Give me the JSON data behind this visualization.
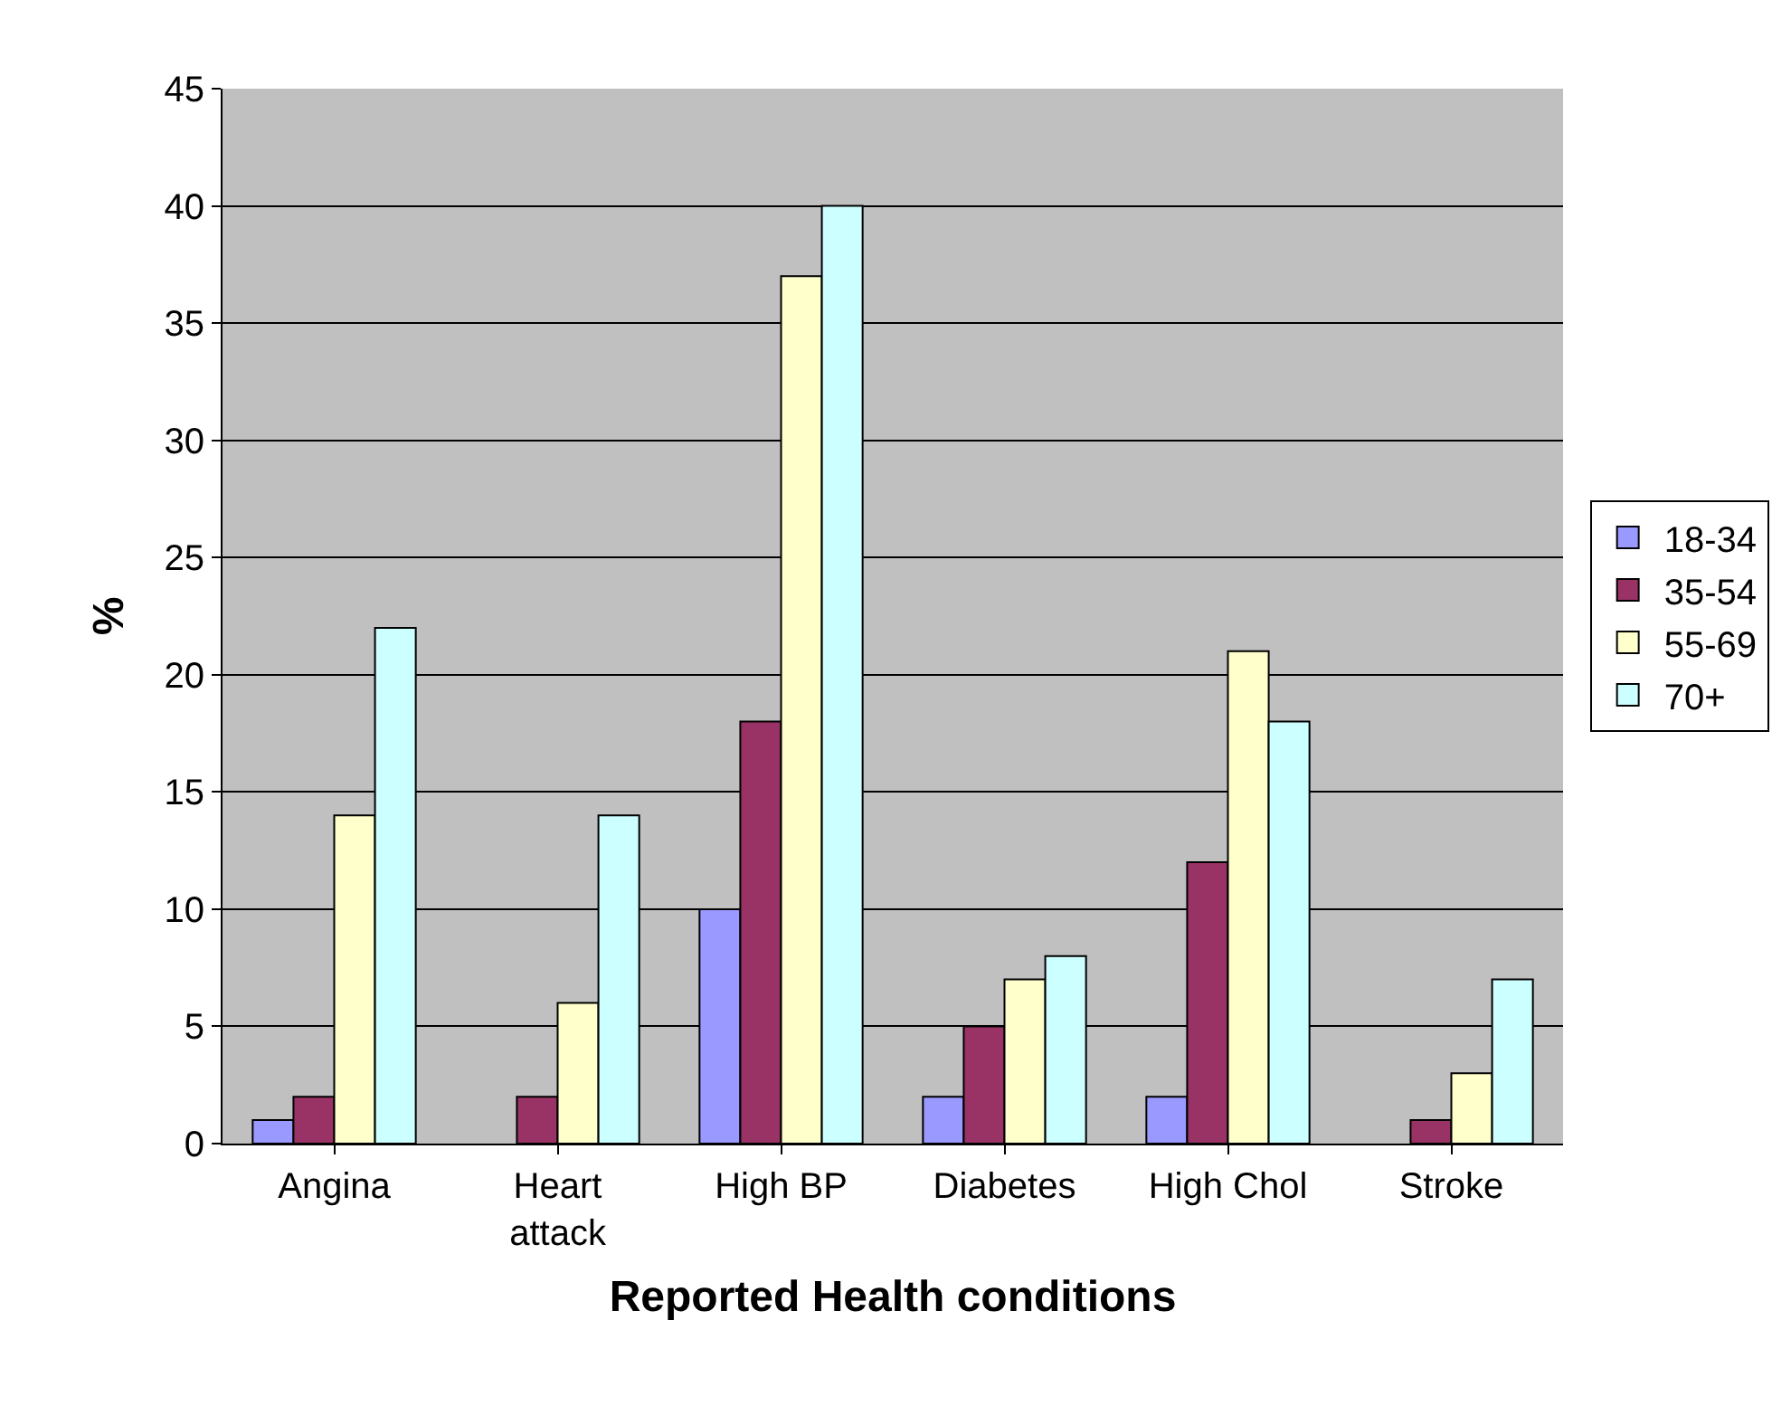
{
  "chart_data": {
    "type": "bar",
    "xlabel": "Reported Health conditions",
    "ylabel": "%",
    "categories": [
      "Angina",
      "Heart attack",
      "High BP",
      "Diabetes",
      "High Chol",
      "Stroke"
    ],
    "series": [
      {
        "name": "18-34",
        "color": "#9999ff",
        "values": [
          1,
          null,
          10,
          2,
          2,
          null
        ]
      },
      {
        "name": "35-54",
        "color": "#993366",
        "values": [
          2,
          2,
          18,
          5,
          12,
          1
        ]
      },
      {
        "name": "55-69",
        "color": "#ffffcc",
        "values": [
          14,
          6,
          37,
          7,
          21,
          3
        ]
      },
      {
        "name": "70+",
        "color": "#ccffff",
        "values": [
          22,
          14,
          40,
          8,
          18,
          7
        ]
      }
    ],
    "ylim": [
      0,
      45
    ],
    "yticks": [
      0,
      5,
      10,
      15,
      20,
      25,
      30,
      35,
      40,
      45
    ],
    "grid": "y",
    "legend": "right"
  }
}
